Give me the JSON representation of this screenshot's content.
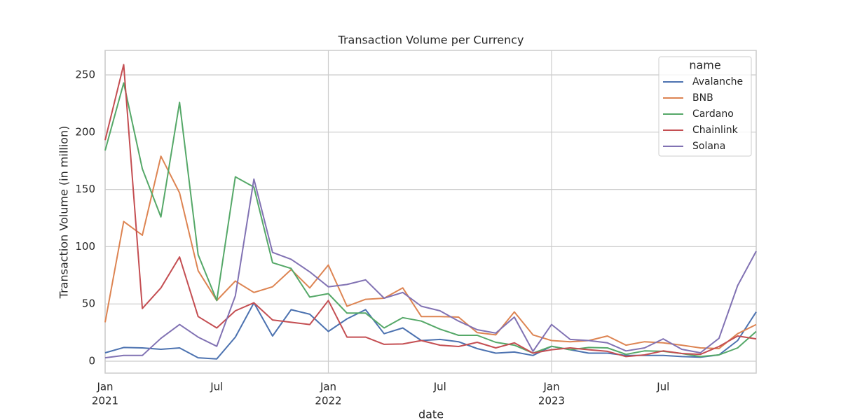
{
  "chart_data": {
    "type": "line",
    "title": "Transaction Volume per Currency",
    "xlabel": "date",
    "ylabel": "Transaction Volume (in million)",
    "x": [
      "2021-01",
      "2021-02",
      "2021-03",
      "2021-04",
      "2021-05",
      "2021-06",
      "2021-07",
      "2021-08",
      "2021-09",
      "2021-10",
      "2021-11",
      "2021-12",
      "2022-01",
      "2022-02",
      "2022-03",
      "2022-04",
      "2022-05",
      "2022-06",
      "2022-07",
      "2022-08",
      "2022-09",
      "2022-10",
      "2022-11",
      "2022-12",
      "2023-01",
      "2023-02",
      "2023-03",
      "2023-04",
      "2023-05",
      "2023-06",
      "2023-07",
      "2023-08",
      "2023-09",
      "2023-10",
      "2023-11",
      "2023-12"
    ],
    "xticks": [
      {
        "value": "2021-01",
        "label": "Jan",
        "year": "2021"
      },
      {
        "value": "2021-07",
        "label": "Jul"
      },
      {
        "value": "2022-01",
        "label": "Jan",
        "year": "2022"
      },
      {
        "value": "2022-07",
        "label": "Jul"
      },
      {
        "value": "2023-01",
        "label": "Jan",
        "year": "2023"
      },
      {
        "value": "2023-07",
        "label": "Jul"
      }
    ],
    "ylim": [
      -10.4,
      271.4
    ],
    "yticks": [
      0,
      50,
      100,
      150,
      200,
      250
    ],
    "grid": true,
    "legend": {
      "title": "name",
      "loc": "upper right"
    },
    "series": [
      {
        "name": "Avalanche",
        "color": "#4c72b0",
        "values": [
          7.3,
          12,
          11.6,
          10.4,
          11.6,
          3,
          2,
          21,
          51,
          22,
          45,
          41,
          26,
          37,
          45,
          24,
          29,
          18,
          19,
          17,
          11,
          7,
          8,
          5,
          13,
          10,
          7,
          7,
          5,
          5,
          5,
          4,
          3.5,
          5.5,
          18,
          43
        ]
      },
      {
        "name": "BNB",
        "color": "#dd8452",
        "values": [
          34,
          122,
          110,
          179,
          147,
          79,
          53,
          70,
          60,
          65,
          80,
          64,
          84,
          48,
          54,
          55,
          64,
          39,
          39,
          38.5,
          25,
          23,
          43,
          23,
          18,
          17,
          18,
          22,
          14,
          17,
          16,
          14,
          11.6,
          11,
          24,
          32
        ]
      },
      {
        "name": "Cardano",
        "color": "#55a868",
        "values": [
          184,
          243,
          168,
          126,
          226,
          93,
          53,
          161,
          152,
          86,
          81,
          56,
          59,
          42,
          42,
          29,
          38,
          35,
          28,
          22.6,
          22.6,
          16.5,
          14,
          7,
          13,
          10,
          12,
          11.6,
          6,
          9,
          8.6,
          6.7,
          4,
          5.5,
          11.6,
          26
        ]
      },
      {
        "name": "Chainlink",
        "color": "#c44e52",
        "values": [
          193,
          259,
          46,
          64,
          91,
          39,
          29,
          44,
          51,
          36,
          34,
          32,
          53,
          21,
          21,
          14.7,
          15,
          18,
          14,
          12.8,
          16.5,
          11.6,
          16,
          7,
          10,
          11.6,
          10,
          8.6,
          4,
          5.5,
          9,
          6.7,
          6,
          12.8,
          22,
          19.5
        ]
      },
      {
        "name": "Solana",
        "color": "#8172b3",
        "values": [
          3,
          5,
          5,
          20,
          32,
          21,
          13,
          57,
          159,
          95,
          89,
          78,
          65,
          67,
          71,
          55,
          60,
          48,
          44,
          35,
          27.5,
          24.5,
          38.5,
          8.6,
          32,
          19,
          18,
          16,
          9,
          11.6,
          19.5,
          10.4,
          7.3,
          20,
          66,
          96
        ]
      }
    ]
  }
}
